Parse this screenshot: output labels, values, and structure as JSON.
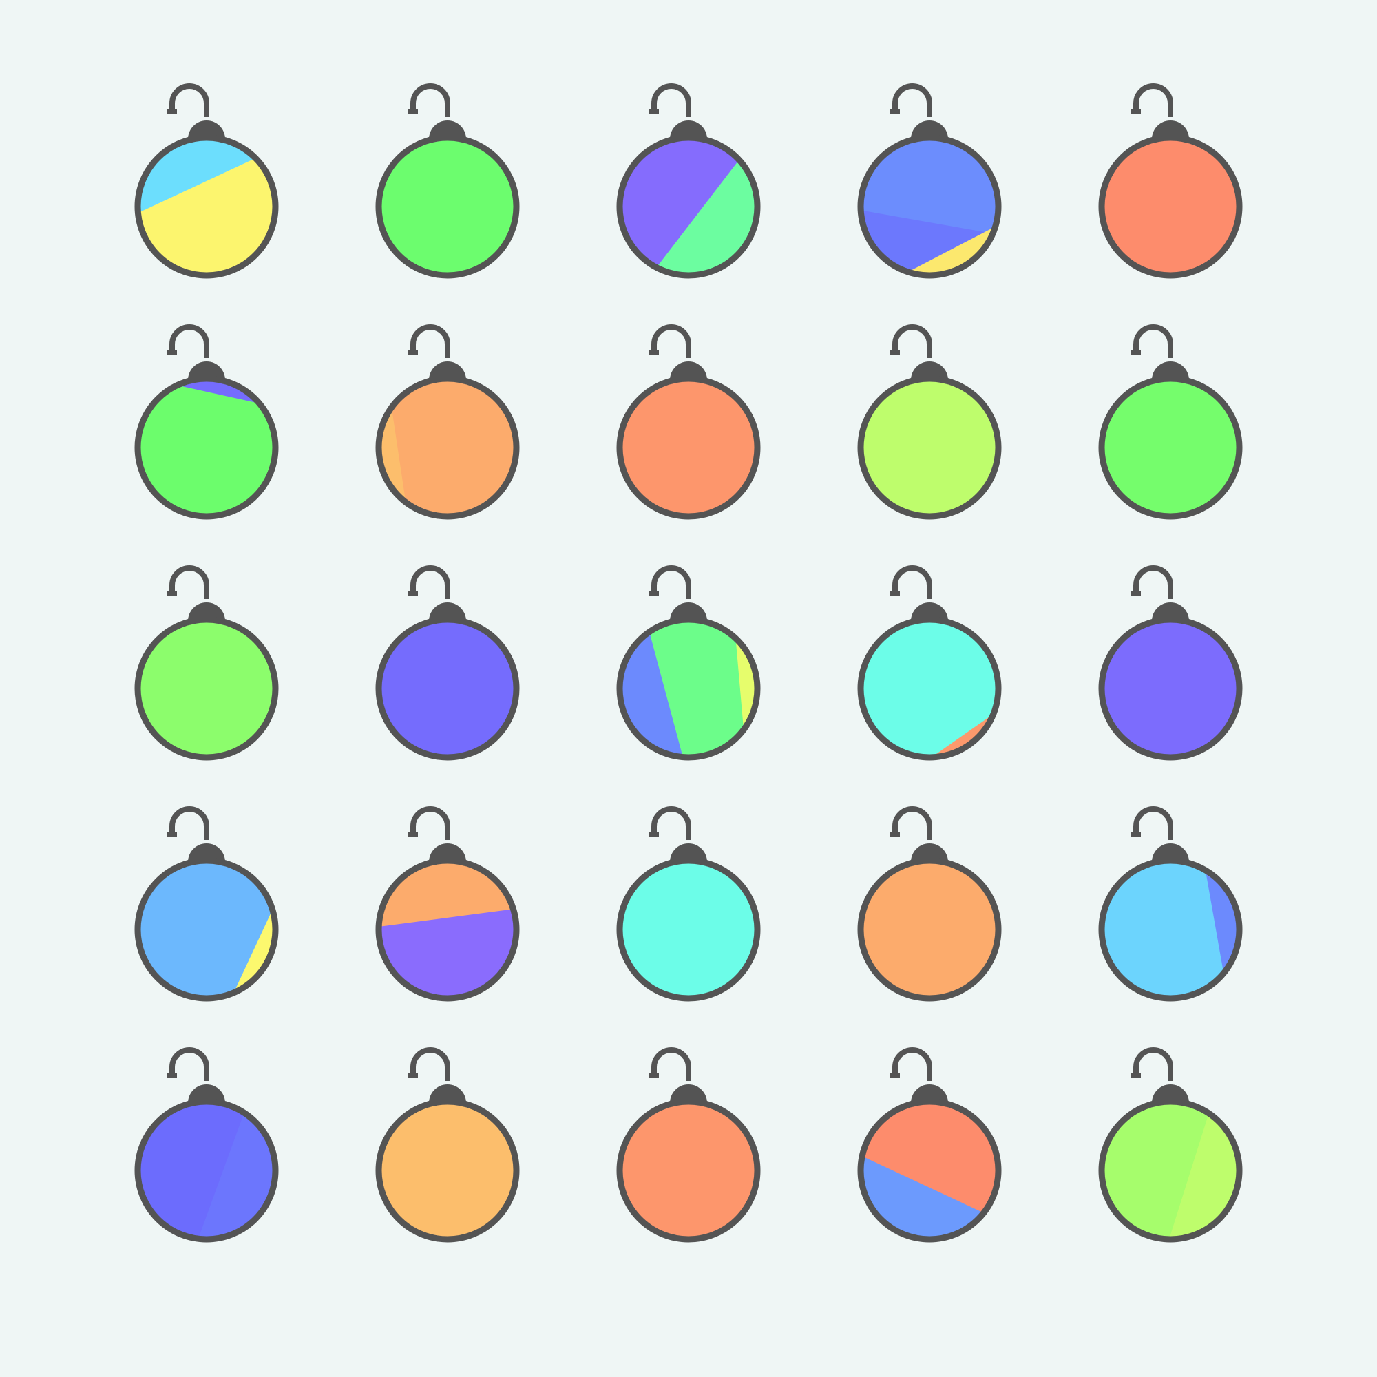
{
  "background": "#eff6f5",
  "outline_color": "#545454",
  "ornaments": [
    {
      "base": "#6cdefd",
      "bands": [
        {
          "a1": -40,
          "a2": 170,
          "c": "#fcf56e"
        },
        {
          "a1": 85,
          "a2": 110,
          "c": "#a6fd6c"
        },
        {
          "a1": 165,
          "a2": 200,
          "c": "#6ca6fd"
        }
      ]
    },
    {
      "base": "#6cfd6e",
      "bands": [
        {
          "a1": 100,
          "a2": 160,
          "c": "#fd6c6c"
        },
        {
          "a1": 130,
          "a2": 165,
          "c": "#6c6cfd"
        }
      ]
    },
    {
      "base": "#856cfd",
      "bands": [
        {
          "a1": -45,
          "a2": 120,
          "c": "#6cfda0"
        },
        {
          "a1": 170,
          "a2": 200,
          "c": "#6cc3fd"
        }
      ]
    },
    {
      "base": "#6c78fd",
      "bands": [
        {
          "a1": 180,
          "a2": 20,
          "c": "#6c8dfd"
        },
        {
          "a1": 5,
          "a2": 120,
          "c": "#fce86e"
        }
      ]
    },
    {
      "base": "#fd8c6c",
      "bands": []
    },
    {
      "base": "#6cfd6c",
      "bands": [
        {
          "a1": 230,
          "a2": 335,
          "c": "#756cfd"
        }
      ]
    },
    {
      "base": "#fcab6c",
      "bands": [
        {
          "a1": 115,
          "a2": 228,
          "c": "#fcbe6c"
        },
        {
          "a1": 228,
          "a2": 252,
          "c": "#545454"
        }
      ]
    },
    {
      "base": "#fd966c",
      "bands": []
    },
    {
      "base": "#befd6c",
      "bands": [
        {
          "a1": 110,
          "a2": 180,
          "c": "#a6fd6c"
        },
        {
          "a1": 165,
          "a2": 178,
          "c": "#fd6c6c"
        }
      ]
    },
    {
      "base": "#75fd6c",
      "bands": []
    },
    {
      "base": "#8cfd6c",
      "bands": [
        {
          "a1": 250,
          "a2": 290,
          "c": "#6cfd96"
        }
      ]
    },
    {
      "base": "#756cfd",
      "bands": [
        {
          "a1": -80,
          "a2": 0,
          "c": "#8cfd6c"
        },
        {
          "a1": 75,
          "a2": 110,
          "c": "#8cfd6c"
        }
      ]
    },
    {
      "base": "#6cfd8a",
      "bands": [
        {
          "a1": 90,
          "a2": 240,
          "c": "#6c8afd"
        },
        {
          "a1": -60,
          "a2": 50,
          "c": "#e6fd6c"
        },
        {
          "a1": 50,
          "a2": 88,
          "c": "#6cfdf0"
        }
      ]
    },
    {
      "base": "#6cfde8",
      "bands": [
        {
          "a1": 5,
          "a2": 105,
          "c": "#fd996c"
        }
      ]
    },
    {
      "base": "#7c6cfd",
      "bands": [
        {
          "a1": 110,
          "a2": 170,
          "c": "#6cfde8"
        },
        {
          "a1": 112,
          "a2": 125,
          "c": "#e0fd6c"
        }
      ]
    },
    {
      "base": "#6cb8fd",
      "bands": [
        {
          "a1": -30,
          "a2": 80,
          "c": "#fcf86e"
        }
      ]
    },
    {
      "base": "#8a6cfd",
      "bands": [
        {
          "a1": 180,
          "a2": -15,
          "c": "#fcab6c"
        },
        {
          "a1": 150,
          "a2": 182,
          "c": "#fcd46e"
        },
        {
          "a1": -40,
          "a2": -5,
          "c": "#a6fd6c"
        }
      ]
    },
    {
      "base": "#6cfde8",
      "bands": [
        {
          "a1": -10,
          "a2": 48,
          "c": "#7c6cfd"
        }
      ]
    },
    {
      "base": "#fcab6c",
      "bands": [
        {
          "a1": 100,
          "a2": 160,
          "c": "#6cd0fd"
        }
      ]
    },
    {
      "base": "#6cd4fd",
      "bands": [
        {
          "a1": -70,
          "a2": 50,
          "c": "#6c8afd"
        },
        {
          "a1": 45,
          "a2": 110,
          "c": "#6ce4fd"
        }
      ]
    },
    {
      "base": "#6c6cfd",
      "bands": [
        {
          "a1": 180,
          "a2": 240,
          "c": "#befd6c"
        },
        {
          "a1": 240,
          "a2": 255,
          "c": "#545454"
        },
        {
          "a1": 255,
          "a2": 272,
          "c": "#fcf86e"
        },
        {
          "a1": 272,
          "a2": 300,
          "c": "#6c6cfd"
        },
        {
          "a1": -60,
          "a2": 100,
          "c": "#6c76fd"
        }
      ]
    },
    {
      "base": "#fcbe6c",
      "bands": [
        {
          "a1": 110,
          "a2": 160,
          "c": "#d0fd6c"
        }
      ]
    },
    {
      "base": "#fd966c",
      "bands": []
    },
    {
      "base": "#fd8c6c",
      "bands": [
        {
          "a1": 35,
          "a2": 195,
          "c": "#6c9afd"
        }
      ]
    },
    {
      "base": "#a6fd6c",
      "bands": [
        {
          "a1": -60,
          "a2": 95,
          "c": "#befd6c"
        },
        {
          "a1": 95,
          "a2": 120,
          "c": "#545454"
        },
        {
          "a1": 262,
          "a2": 290,
          "c": "#545454"
        }
      ]
    }
  ]
}
